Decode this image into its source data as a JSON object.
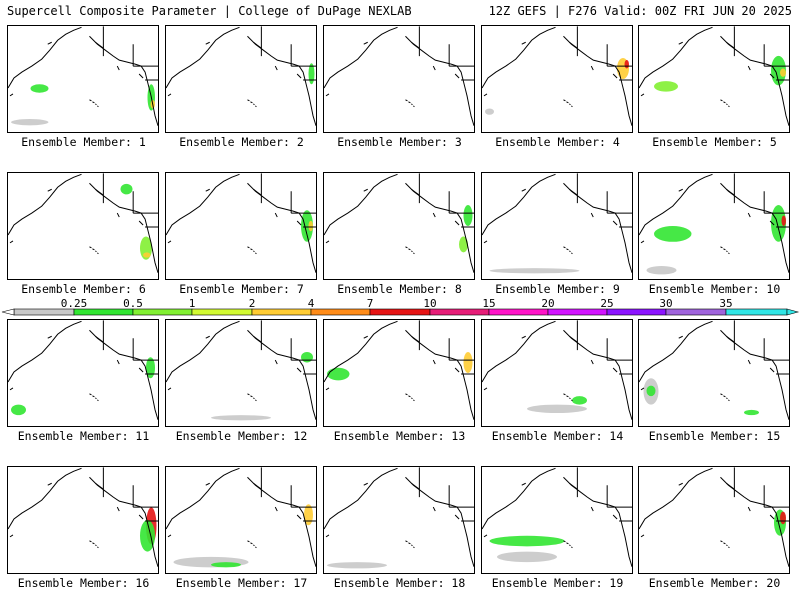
{
  "header": {
    "title": "Supercell Composite Parameter | College of DuPage NEXLAB",
    "run_info": "12Z GEFS | F276 Valid: 00Z FRI JUN 20 2025"
  },
  "legend": {
    "ticks": [
      "0.25",
      "0.5",
      "1",
      "2",
      "4",
      "7",
      "10",
      "15",
      "20",
      "25",
      "30",
      "35"
    ],
    "colors": [
      "#c8c8c8",
      "#32e632",
      "#82f032",
      "#d2fa32",
      "#ffcc33",
      "#ff8c19",
      "#e61414",
      "#e61e78",
      "#ff14c8",
      "#d214ff",
      "#8c14ff",
      "#a064dc",
      "#32e6e6"
    ]
  },
  "map_colors": {
    "trace": "#c8c8c8",
    "low": "#32e632",
    "mid": "#82f032",
    "high": "#ffcc33",
    "extreme": "#e61414"
  },
  "members": [
    {
      "label": "Ensemble Member: 1",
      "id": 1
    },
    {
      "label": "Ensemble Member: 2",
      "id": 2
    },
    {
      "label": "Ensemble Member: 3",
      "id": 3
    },
    {
      "label": "Ensemble Member: 4",
      "id": 4
    },
    {
      "label": "Ensemble Member: 5",
      "id": 5
    },
    {
      "label": "Ensemble Member: 6",
      "id": 6
    },
    {
      "label": "Ensemble Member: 7",
      "id": 7
    },
    {
      "label": "Ensemble Member: 8",
      "id": 8
    },
    {
      "label": "Ensemble Member: 9",
      "id": 9
    },
    {
      "label": "Ensemble Member: 10",
      "id": 10
    },
    {
      "label": "Ensemble Member: 11",
      "id": 11
    },
    {
      "label": "Ensemble Member: 12",
      "id": 12
    },
    {
      "label": "Ensemble Member: 13",
      "id": 13
    },
    {
      "label": "Ensemble Member: 14",
      "id": 14
    },
    {
      "label": "Ensemble Member: 15",
      "id": 15
    },
    {
      "label": "Ensemble Member: 16",
      "id": 16
    },
    {
      "label": "Ensemble Member: 17",
      "id": 17
    },
    {
      "label": "Ensemble Member: 18",
      "id": 18
    },
    {
      "label": "Ensemble Member: 19",
      "id": 19
    },
    {
      "label": "Ensemble Member: 20",
      "id": 20
    }
  ]
}
